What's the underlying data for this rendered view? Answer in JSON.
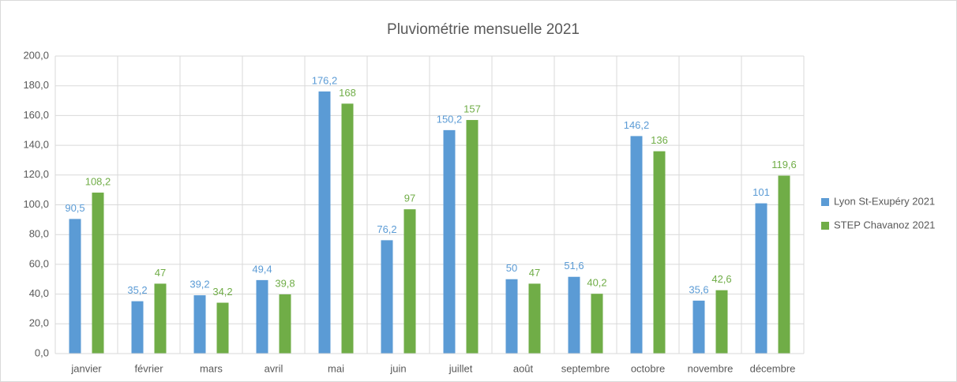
{
  "chart_data": {
    "type": "bar",
    "title": "Pluviométrie mensuelle 2021",
    "categories": [
      "janvier",
      "février",
      "mars",
      "avril",
      "mai",
      "juin",
      "juillet",
      "août",
      "septembre",
      "octobre",
      "novembre",
      "décembre"
    ],
    "series": [
      {
        "name": "Lyon St-Exupéry 2021",
        "color": "#5b9bd5",
        "values": [
          90.5,
          35.2,
          39.2,
          49.4,
          176.2,
          76.2,
          150.2,
          50,
          51.6,
          146.2,
          35.6,
          101
        ],
        "value_labels": [
          "90,5",
          "35,2",
          "39,2",
          "49,4",
          "176,2",
          "76,2",
          "150,2",
          "50",
          "51,6",
          "146,2",
          "35,6",
          "101"
        ]
      },
      {
        "name": "STEP Chavanoz 2021",
        "color": "#70ad47",
        "values": [
          108.2,
          47,
          34.2,
          39.8,
          168,
          97,
          157,
          47,
          40.2,
          136,
          42.6,
          119.6
        ],
        "value_labels": [
          "108,2",
          "47",
          "34,2",
          "39,8",
          "168",
          "97",
          "157",
          "47",
          "40,2",
          "136",
          "42,6",
          "119,6"
        ]
      }
    ],
    "ylim": [
      0,
      200
    ],
    "yticks": [
      {
        "value": 0,
        "label": "0,0"
      },
      {
        "value": 20,
        "label": "20,0"
      },
      {
        "value": 40,
        "label": "40,0"
      },
      {
        "value": 60,
        "label": "60,0"
      },
      {
        "value": 80,
        "label": "80,0"
      },
      {
        "value": 100,
        "label": "100,0"
      },
      {
        "value": 120,
        "label": "120,0"
      },
      {
        "value": 140,
        "label": "140,0"
      },
      {
        "value": 160,
        "label": "160,0"
      },
      {
        "value": 180,
        "label": "180,0"
      },
      {
        "value": 200,
        "label": "200,0"
      }
    ],
    "grid": true,
    "legend": "right"
  }
}
